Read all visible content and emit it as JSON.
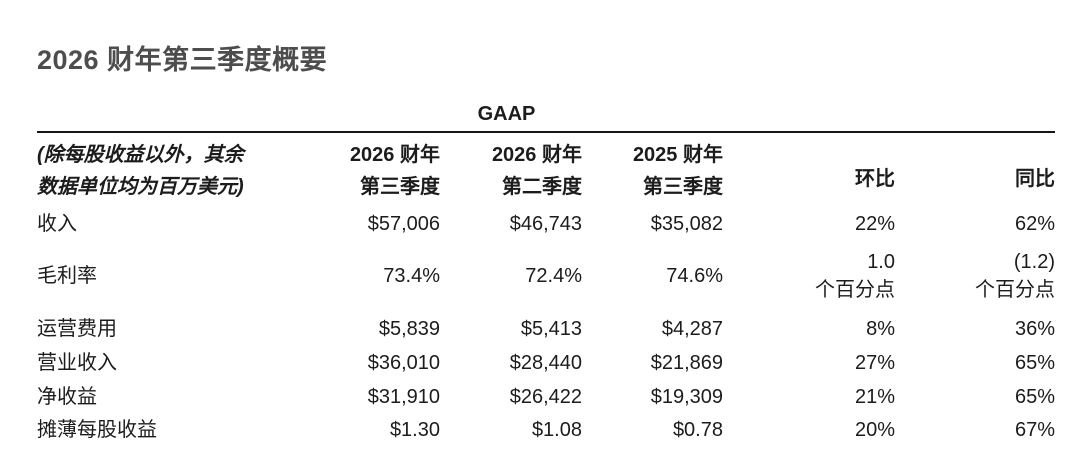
{
  "page": {
    "title": "2026 财年第三季度概要"
  },
  "table": {
    "gaap_label": "GAAP",
    "note": "(除每股收益以外，其余\n数据单位均为百万美元)",
    "columns": [
      "2026 财年\n第三季度",
      "2026 财年\n第二季度",
      "2025 财年\n第三季度",
      "环比",
      "同比"
    ],
    "rows": [
      {
        "label": "收入",
        "values": [
          "$57,006",
          "$46,743",
          "$35,082",
          "22%",
          "62%"
        ]
      },
      {
        "label": "毛利率",
        "values": [
          "73.4%",
          "72.4%",
          "74.6%",
          "1.0\n个百分点",
          "(1.2)\n个百分点"
        ]
      },
      {
        "label": "运营费用",
        "values": [
          "$5,839",
          "$5,413",
          "$4,287",
          "8%",
          "36%"
        ]
      },
      {
        "label": "营业收入",
        "values": [
          "$36,010",
          "$28,440",
          "$21,869",
          "27%",
          "65%"
        ]
      },
      {
        "label": "净收益",
        "values": [
          "$31,910",
          "$26,422",
          "$19,309",
          "21%",
          "65%"
        ]
      },
      {
        "label": "摊薄每股收益",
        "values": [
          "$1.30",
          "$1.08",
          "$0.78",
          "20%",
          "67%"
        ]
      }
    ]
  },
  "colors": {
    "text": "#1c1c1c",
    "title": "#4d4d4d",
    "rule": "#161616",
    "bg": "#ffffff"
  }
}
